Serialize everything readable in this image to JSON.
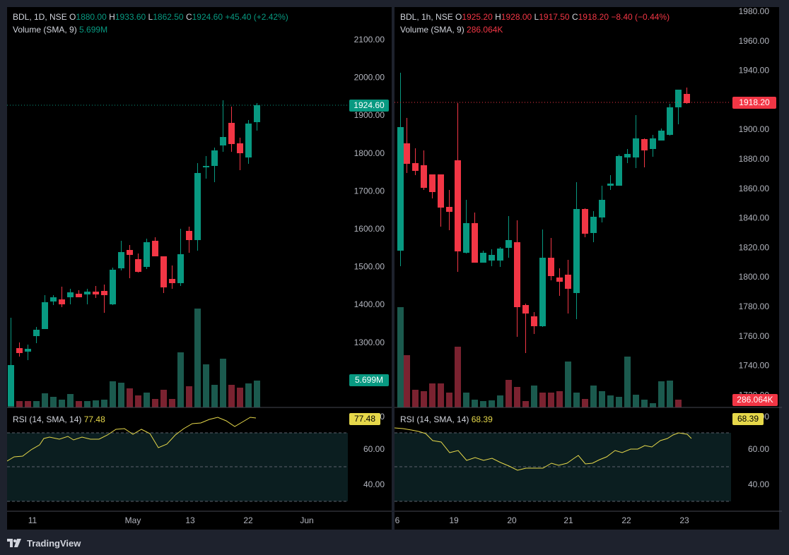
{
  "colors": {
    "up": "#089981",
    "down": "#f23645",
    "vol_up": "#1b5a4e",
    "vol_down": "#7a2230",
    "rsi": "#e6d84a",
    "grid": "#2a2e39",
    "rsi_bg": "#0b1e20",
    "axis_text": "#b2b5be"
  },
  "left": {
    "symbol": "BDL, 1D, NSE",
    "o_label": "O",
    "o": "1880.00",
    "h_label": "H",
    "h": "1933.60",
    "l_label": "L",
    "l": "1862.50",
    "c_label": "C",
    "c": "1924.60",
    "change": "+45.40 (+2.42%)",
    "change_color": "#089981",
    "volume_label": "Volume (SMA, 9)",
    "volume_value": "5.699M",
    "rsi_label": "RSI (14, SMA, 14)",
    "rsi_value": "77.48",
    "price_tag": "1924.60",
    "volume_tag": "5.699M",
    "rsi_tag": "77.48",
    "price_axis": [
      "2100.00",
      "2000.00",
      "1900.00",
      "1800.00",
      "1700.00",
      "1600.00",
      "1500.00",
      "1400.00",
      "1300.00"
    ],
    "rsi_axis": [
      "80.00",
      "60.00",
      "40.00"
    ],
    "time_axis": [
      "11",
      "May",
      "13",
      "22",
      "Jun"
    ]
  },
  "right": {
    "symbol": "BDL, 1h, NSE",
    "o_label": "O",
    "o": "1925.20",
    "h_label": "H",
    "h": "1928.00",
    "l_label": "L",
    "l": "1917.50",
    "c_label": "C",
    "c": "1918.20",
    "change": "−8.40 (−0.44%)",
    "change_color": "#f23645",
    "volume_label": "Volume (SMA, 9)",
    "volume_value": "286.064K",
    "rsi_label": "RSI (14, SMA, 14)",
    "rsi_value": "68.39",
    "price_tag": "1918.20",
    "volume_tag": "286.064K",
    "rsi_tag": "68.39",
    "price_axis": [
      "1980.00",
      "1960.00",
      "1940.00",
      "1920.00",
      "1900.00",
      "1880.00",
      "1860.00",
      "1840.00",
      "1820.00",
      "1800.00",
      "1780.00",
      "1760.00",
      "1740.00",
      "1720.00"
    ],
    "rsi_axis": [
      "80.00",
      "60.00",
      "40.00"
    ],
    "time_axis": [
      "6",
      "19",
      "20",
      "21",
      "22",
      "23"
    ]
  },
  "footer": {
    "brand": "TradingView",
    "logo_icon": "tradingview-logo-icon"
  }
}
